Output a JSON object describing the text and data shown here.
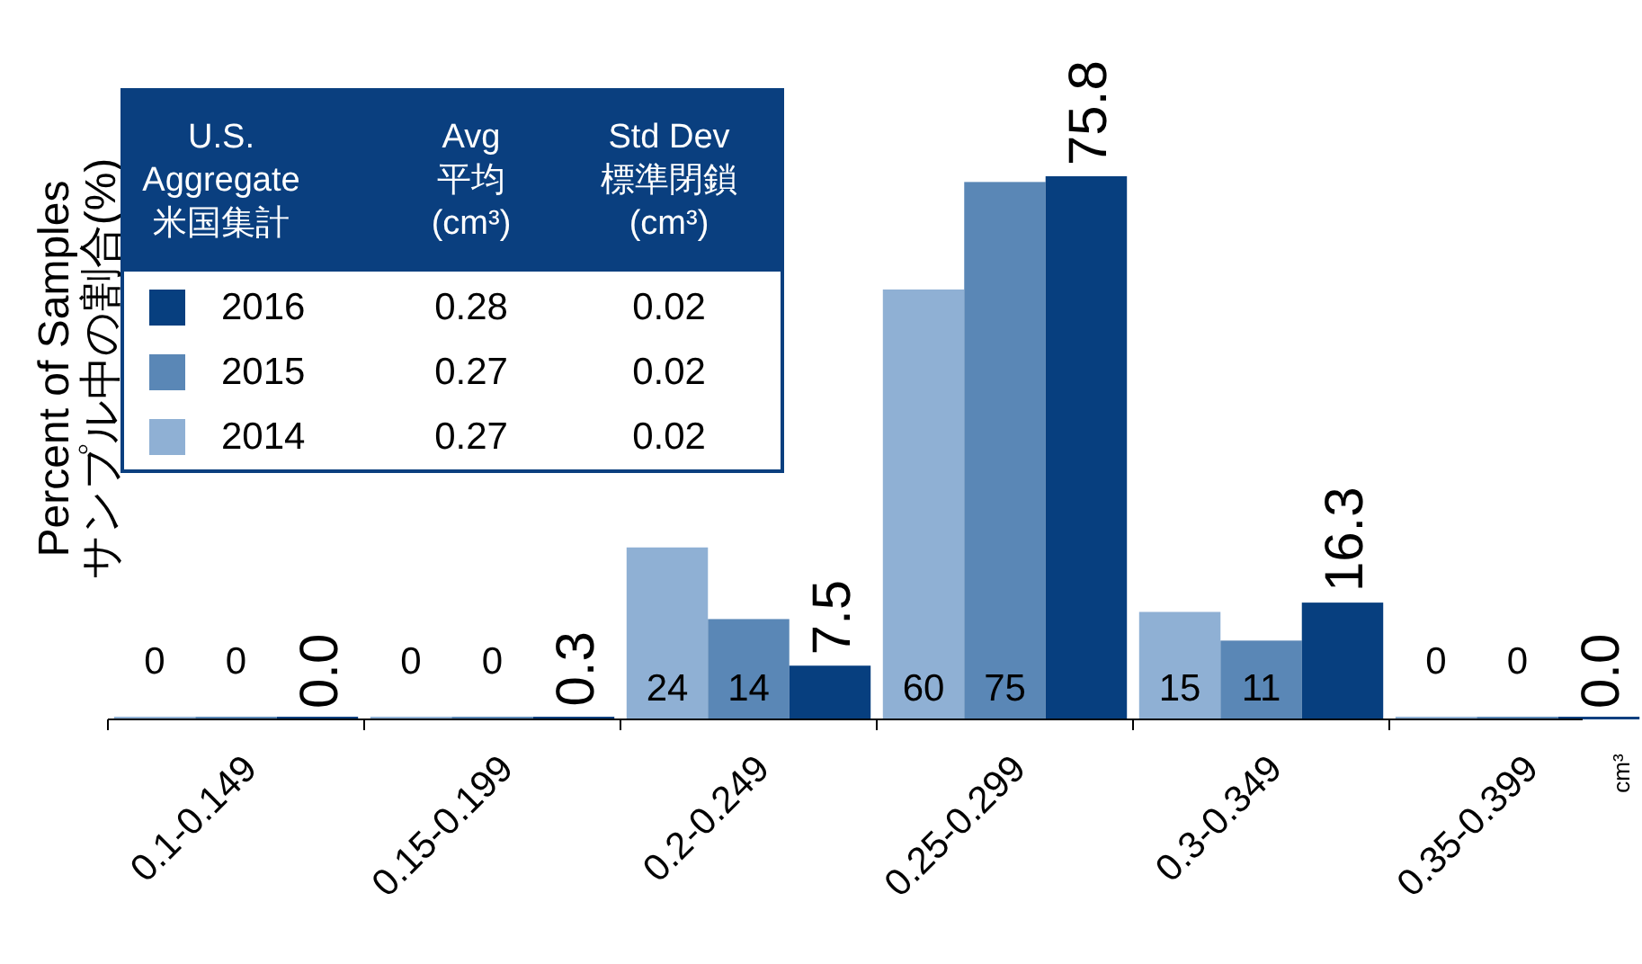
{
  "chart_data": {
    "type": "bar",
    "categories": [
      "0.1-0.149",
      "0.15-0.199",
      "0.2-0.249",
      "0.25-0.299",
      "0.3-0.349",
      "0.35-0.399"
    ],
    "ylabel": "Percent of Samples\nサンプル中の割合(%)",
    "legend": "top left",
    "legend_title": "U.S.\nAggregate\n米国集計",
    "annotations": [
      "Avg\n平均\n(cm³)",
      "Std Dev\n標準閉鎖\n(cm³)",
      "0.28",
      "0.02",
      "0.27",
      "0.02",
      "0.27",
      "0.02",
      "cm³"
    ],
    "series": [
      {
        "name": "2014",
        "color": "#8fb0d4",
        "values": [
          0,
          0,
          24,
          60,
          15,
          0
        ],
        "value_labels": [
          "0",
          "0",
          "24",
          "60",
          "15",
          "0"
        ]
      },
      {
        "name": "2015",
        "color": "#5a87b6",
        "values": [
          0,
          0,
          14,
          75,
          11,
          0
        ],
        "value_labels": [
          "0",
          "0",
          "14",
          "75",
          "11",
          "0"
        ]
      },
      {
        "name": "2016",
        "color": "#073f7f",
        "values": [
          0.0,
          0.3,
          7.5,
          75.8,
          16.3,
          0.0
        ],
        "value_labels": [
          "0.0",
          "0.3",
          "7.5",
          "75.8",
          "16.3",
          "0.0"
        ]
      }
    ]
  }
}
